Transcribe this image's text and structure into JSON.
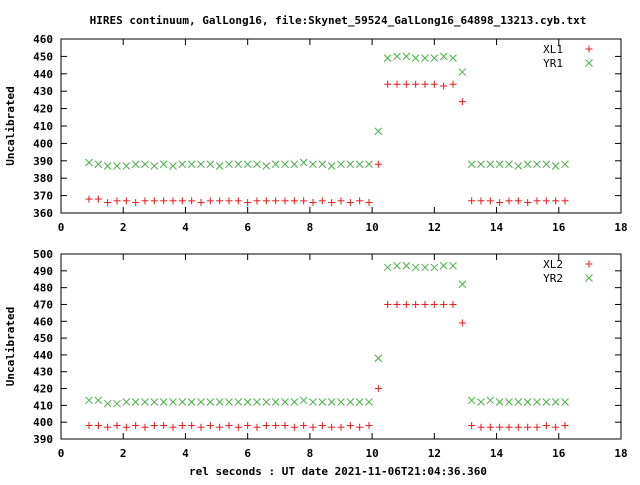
{
  "title": "HIRES continuum, GalLong16, file:Skynet_59524_GalLong16_64898_13213.cyb.txt",
  "xlabel": "rel seconds : UT date 2021-11-06T21:04:36.360",
  "chart_data": [
    {
      "type": "scatter",
      "ylabel": "Uncalibrated",
      "xlim": [
        0,
        18
      ],
      "ylim": [
        360,
        460
      ],
      "xticks": [
        0,
        2,
        4,
        6,
        8,
        10,
        12,
        14,
        16,
        18
      ],
      "yticks": [
        360,
        370,
        380,
        390,
        400,
        410,
        420,
        430,
        440,
        450,
        460
      ],
      "legend_position": "top-right",
      "series": [
        {
          "name": "XL1",
          "color": "#e41a1c",
          "marker": "plus",
          "x": [
            0.9,
            1.2,
            1.5,
            1.8,
            2.1,
            2.4,
            2.7,
            3.0,
            3.3,
            3.6,
            3.9,
            4.2,
            4.5,
            4.8,
            5.1,
            5.4,
            5.7,
            6.0,
            6.3,
            6.6,
            6.9,
            7.2,
            7.5,
            7.8,
            8.1,
            8.4,
            8.7,
            9.0,
            9.3,
            9.6,
            9.9,
            10.2,
            10.5,
            10.8,
            11.1,
            11.4,
            11.7,
            12.0,
            12.3,
            12.6,
            12.9,
            13.2,
            13.5,
            13.8,
            14.1,
            14.4,
            14.7,
            15.0,
            15.3,
            15.6,
            15.9,
            16.2
          ],
          "y": [
            368,
            368,
            366,
            367,
            367,
            366,
            367,
            367,
            367,
            367,
            367,
            367,
            366,
            367,
            367,
            367,
            367,
            366,
            367,
            367,
            367,
            367,
            367,
            367,
            366,
            367,
            366,
            367,
            366,
            367,
            366,
            388,
            434,
            434,
            434,
            434,
            434,
            434,
            433,
            434,
            424,
            367,
            367,
            367,
            366,
            367,
            367,
            366,
            367,
            367,
            367,
            367
          ]
        },
        {
          "name": "YR1",
          "color": "#4daf4a",
          "marker": "cross",
          "x": [
            0.9,
            1.2,
            1.5,
            1.8,
            2.1,
            2.4,
            2.7,
            3.0,
            3.3,
            3.6,
            3.9,
            4.2,
            4.5,
            4.8,
            5.1,
            5.4,
            5.7,
            6.0,
            6.3,
            6.6,
            6.9,
            7.2,
            7.5,
            7.8,
            8.1,
            8.4,
            8.7,
            9.0,
            9.3,
            9.6,
            9.9,
            10.2,
            10.5,
            10.8,
            11.1,
            11.4,
            11.7,
            12.0,
            12.3,
            12.6,
            12.9,
            13.2,
            13.5,
            13.8,
            14.1,
            14.4,
            14.7,
            15.0,
            15.3,
            15.6,
            15.9,
            16.2
          ],
          "y": [
            389,
            388,
            387,
            387,
            387,
            388,
            388,
            387,
            388,
            387,
            388,
            388,
            388,
            388,
            387,
            388,
            388,
            388,
            388,
            387,
            388,
            388,
            388,
            389,
            388,
            388,
            387,
            388,
            388,
            388,
            388,
            407,
            449,
            450,
            450,
            449,
            449,
            449,
            450,
            449,
            441,
            388,
            388,
            388,
            388,
            388,
            387,
            388,
            388,
            388,
            387,
            388
          ]
        }
      ]
    },
    {
      "type": "scatter",
      "ylabel": "Uncalibrated",
      "xlim": [
        0,
        18
      ],
      "ylim": [
        390,
        500
      ],
      "xticks": [
        0,
        2,
        4,
        6,
        8,
        10,
        12,
        14,
        16,
        18
      ],
      "yticks": [
        390,
        400,
        410,
        420,
        430,
        440,
        450,
        460,
        470,
        480,
        490,
        500
      ],
      "legend_position": "top-right",
      "series": [
        {
          "name": "XL2",
          "color": "#e41a1c",
          "marker": "plus",
          "x": [
            0.9,
            1.2,
            1.5,
            1.8,
            2.1,
            2.4,
            2.7,
            3.0,
            3.3,
            3.6,
            3.9,
            4.2,
            4.5,
            4.8,
            5.1,
            5.4,
            5.7,
            6.0,
            6.3,
            6.6,
            6.9,
            7.2,
            7.5,
            7.8,
            8.1,
            8.4,
            8.7,
            9.0,
            9.3,
            9.6,
            9.9,
            10.2,
            10.5,
            10.8,
            11.1,
            11.4,
            11.7,
            12.0,
            12.3,
            12.6,
            12.9,
            13.2,
            13.5,
            13.8,
            14.1,
            14.4,
            14.7,
            15.0,
            15.3,
            15.6,
            15.9,
            16.2
          ],
          "y": [
            398,
            398,
            397,
            398,
            397,
            398,
            397,
            398,
            398,
            397,
            398,
            398,
            397,
            398,
            397,
            398,
            397,
            398,
            397,
            398,
            398,
            398,
            397,
            398,
            397,
            398,
            397,
            397,
            398,
            397,
            398,
            420,
            470,
            470,
            470,
            470,
            470,
            470,
            470,
            470,
            459,
            398,
            397,
            397,
            397,
            397,
            397,
            397,
            397,
            398,
            397,
            398
          ]
        },
        {
          "name": "YR2",
          "color": "#4daf4a",
          "marker": "cross",
          "x": [
            0.9,
            1.2,
            1.5,
            1.8,
            2.1,
            2.4,
            2.7,
            3.0,
            3.3,
            3.6,
            3.9,
            4.2,
            4.5,
            4.8,
            5.1,
            5.4,
            5.7,
            6.0,
            6.3,
            6.6,
            6.9,
            7.2,
            7.5,
            7.8,
            8.1,
            8.4,
            8.7,
            9.0,
            9.3,
            9.6,
            9.9,
            10.2,
            10.5,
            10.8,
            11.1,
            11.4,
            11.7,
            12.0,
            12.3,
            12.6,
            12.9,
            13.2,
            13.5,
            13.8,
            14.1,
            14.4,
            14.7,
            15.0,
            15.3,
            15.6,
            15.9,
            16.2
          ],
          "y": [
            413,
            413,
            411,
            411,
            412,
            412,
            412,
            412,
            412,
            412,
            412,
            412,
            412,
            412,
            412,
            412,
            412,
            412,
            412,
            412,
            412,
            412,
            412,
            413,
            412,
            412,
            412,
            412,
            412,
            412,
            412,
            438,
            492,
            493,
            493,
            492,
            492,
            492,
            493,
            493,
            482,
            413,
            412,
            413,
            412,
            412,
            412,
            412,
            412,
            412,
            412,
            412
          ]
        }
      ]
    }
  ]
}
